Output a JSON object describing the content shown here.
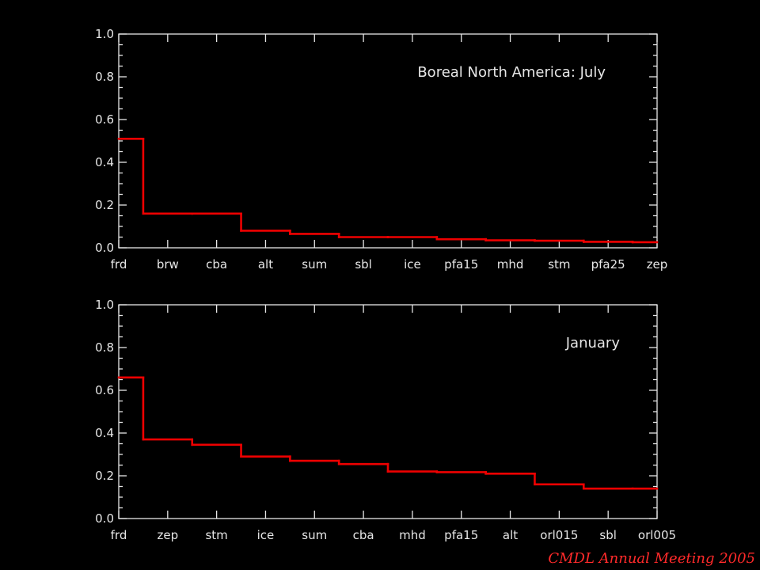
{
  "footer": "CMDL Annual Meeting 2005",
  "colors": {
    "background": "#000000",
    "axis": "#e6e6e6",
    "series": "#ee0000",
    "footer": "#ff2a2a"
  },
  "chart_data": [
    {
      "type": "line",
      "step": true,
      "title": "Boreal North America: July",
      "categories": [
        "frd",
        "brw",
        "cba",
        "alt",
        "sum",
        "sbl",
        "ice",
        "pfa15",
        "mhd",
        "stm",
        "pfa25",
        "zep"
      ],
      "values": [
        0.51,
        0.16,
        0.16,
        0.08,
        0.065,
        0.05,
        0.05,
        0.04,
        0.035,
        0.033,
        0.028,
        0.026
      ],
      "ylim": [
        0,
        1.0
      ],
      "yticks": [
        "0.0",
        "0.2",
        "0.4",
        "0.6",
        "0.8",
        "1.0"
      ],
      "legend": "top-right"
    },
    {
      "type": "line",
      "step": true,
      "title": "January",
      "categories": [
        "frd",
        "zep",
        "stm",
        "ice",
        "sum",
        "cba",
        "mhd",
        "pfa15",
        "alt",
        "orl015",
        "sbl",
        "orl005"
      ],
      "values": [
        0.66,
        0.37,
        0.345,
        0.29,
        0.27,
        0.255,
        0.22,
        0.217,
        0.21,
        0.16,
        0.14,
        0.14
      ],
      "ylim": [
        0,
        1.0
      ],
      "yticks": [
        "0.0",
        "0.2",
        "0.4",
        "0.6",
        "0.8",
        "1.0"
      ],
      "legend": "top-right"
    }
  ]
}
